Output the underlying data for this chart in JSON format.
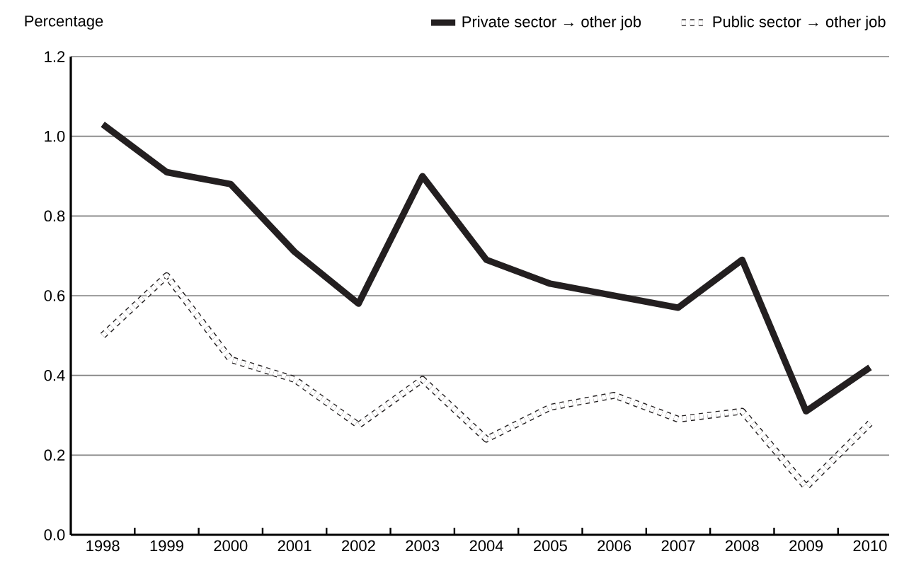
{
  "chart_data": {
    "type": "line",
    "ylabel": "Percentage",
    "categories": [
      "1998",
      "1999",
      "2000",
      "2001",
      "2002",
      "2003",
      "2004",
      "2005",
      "2006",
      "2007",
      "2008",
      "2009",
      "2010"
    ],
    "ylim": [
      0,
      1.2
    ],
    "yticks": [
      {
        "value": 0,
        "label": "0.0"
      },
      0.2,
      0.4,
      0.6,
      0.8,
      {
        "value": 1,
        "label": "1.0"
      },
      1.2
    ],
    "grid": "y",
    "legend": "top",
    "marker": "none",
    "series": [
      {
        "name": "Private sector → other job",
        "color": "#231f20",
        "line_style": "solid",
        "values": [
          1.03,
          0.91,
          0.88,
          0.71,
          0.58,
          0.9,
          0.69,
          0.63,
          0.6,
          0.57,
          0.69,
          0.31,
          0.42
        ]
      },
      {
        "name": "Public sector → other job",
        "color": "#231f20",
        "line_style": "dashed",
        "values": [
          0.5,
          0.65,
          0.44,
          0.39,
          0.275,
          0.39,
          0.24,
          0.32,
          0.35,
          0.29,
          0.31,
          0.12,
          0.28
        ]
      }
    ]
  }
}
